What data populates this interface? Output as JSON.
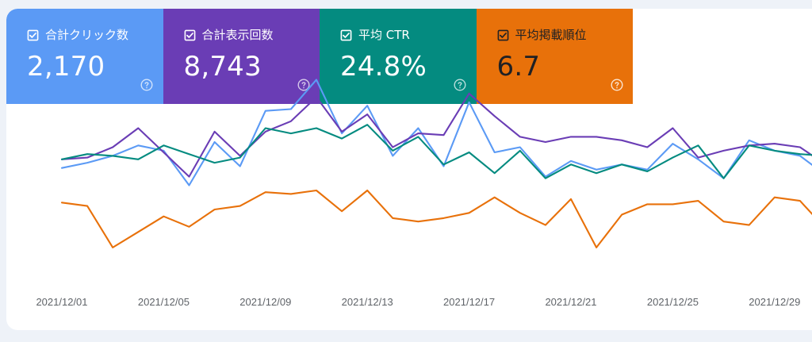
{
  "metrics": [
    {
      "label": "合計クリック数",
      "value": "2,170",
      "bg": "#5b9af5",
      "checkbox_icon": "checked-box-icon",
      "help_icon": "help-circle-icon"
    },
    {
      "label": "合計表示回数",
      "value": "8,743",
      "bg": "#6a3db5",
      "checkbox_icon": "checked-box-icon",
      "help_icon": "help-circle-icon"
    },
    {
      "label": "平均 CTR",
      "value": "24.8%",
      "bg": "#048b80",
      "checkbox_icon": "checked-box-icon",
      "help_icon": "help-circle-icon"
    },
    {
      "label": "平均掲載順位",
      "value": "6.7",
      "bg": "#e8710a",
      "checkbox_icon": "checked-box-icon",
      "help_icon": "help-circle-icon"
    }
  ],
  "chart_data": {
    "type": "line",
    "x": [
      "2021/12/01",
      "2021/12/02",
      "2021/12/03",
      "2021/12/04",
      "2021/12/05",
      "2021/12/06",
      "2021/12/07",
      "2021/12/08",
      "2021/12/09",
      "2021/12/10",
      "2021/12/11",
      "2021/12/12",
      "2021/12/13",
      "2021/12/14",
      "2021/12/15",
      "2021/12/16",
      "2021/12/17",
      "2021/12/18",
      "2021/12/19",
      "2021/12/20",
      "2021/12/21",
      "2021/12/22",
      "2021/12/23",
      "2021/12/24",
      "2021/12/25",
      "2021/12/26",
      "2021/12/27",
      "2021/12/28",
      "2021/12/29",
      "2021/12/30",
      "2021/12/31"
    ],
    "tick_labels": [
      "2021/12/01",
      "2021/12/05",
      "2021/12/09",
      "2021/12/13",
      "2021/12/17",
      "2021/12/21",
      "2021/12/25",
      "2021/12/29"
    ],
    "ylim": [
      0,
      100
    ],
    "grid": false,
    "series": [
      {
        "color": "#5b9af5",
        "values": [
          63,
          66,
          70,
          76,
          73,
          53,
          78,
          64,
          96,
          97,
          114,
          83,
          99,
          70,
          86,
          64,
          101,
          72,
          75,
          58,
          67,
          62,
          65,
          62,
          77,
          68,
          57,
          79,
          73,
          70,
          59
        ]
      },
      {
        "color": "#6a3db5",
        "values": [
          68,
          69,
          75,
          86,
          72,
          58,
          84,
          70,
          84,
          90,
          104,
          84,
          94,
          75,
          83,
          82,
          106,
          93,
          81,
          78,
          81,
          81,
          79,
          75,
          86,
          69,
          73,
          76,
          77,
          75,
          65
        ]
      },
      {
        "color": "#048b80",
        "values": [
          68,
          71,
          70,
          68,
          76,
          71,
          66,
          69,
          86,
          83,
          86,
          80,
          88,
          73,
          81,
          65,
          72,
          60,
          73,
          57,
          65,
          60,
          65,
          61,
          69,
          76,
          57,
          76,
          73,
          71,
          70
        ]
      },
      {
        "color": "#e8710a",
        "values": [
          43,
          41,
          17,
          26,
          35,
          29,
          39,
          41,
          49,
          48,
          50,
          38,
          50,
          34,
          32,
          34,
          37,
          46,
          37,
          30,
          45,
          17,
          36,
          42,
          42,
          44,
          32,
          30,
          46,
          44,
          28
        ]
      }
    ]
  }
}
